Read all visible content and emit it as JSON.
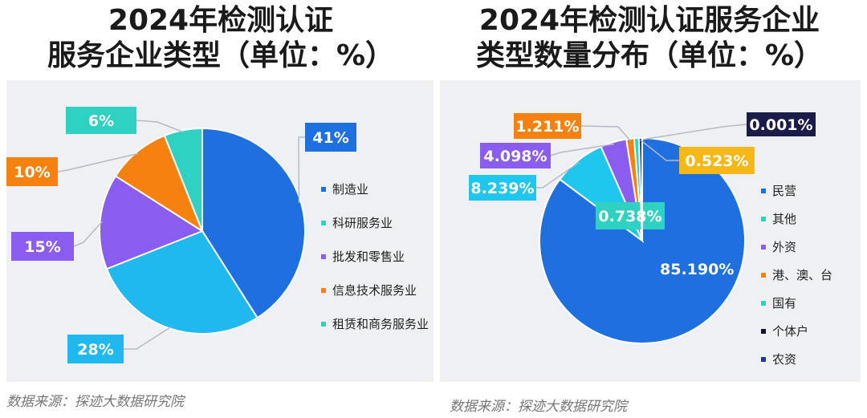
{
  "chart_data": [
    {
      "type": "pie",
      "title": "2024年检测认证服务企业类型（单位：%）",
      "title_lines": [
        "2024年检测认证",
        "服务企业类型（单位：%）"
      ],
      "source": "数据来源：探迹大数据研究院",
      "slices": [
        {
          "name": "制造业",
          "value": 41,
          "label": "41%",
          "color": "#1e6fe0",
          "label_bg": "#1e6fe0"
        },
        {
          "name": "租赁和商务服务业",
          "value": 28,
          "label": "28%",
          "color": "#1fb8ef",
          "label_bg": "#1fb8ef"
        },
        {
          "name": "批发和零售业",
          "value": 15,
          "label": "15%",
          "color": "#8a5cf0",
          "label_bg": "#8a5cf0"
        },
        {
          "name": "信息技术服务业",
          "value": 10,
          "label": "10%",
          "color": "#f5820f",
          "label_bg": "#f5820f"
        },
        {
          "name": "科研服务业",
          "value": 6,
          "label": "6%",
          "color": "#2ed1c2",
          "label_bg": "#2ed1c2"
        }
      ],
      "legend": [
        {
          "name": "制造业",
          "color": "#1e6fe0"
        },
        {
          "name": "科研服务业",
          "color": "#2ed1c2"
        },
        {
          "name": "批发和零售业",
          "color": "#8a5cf0"
        },
        {
          "name": "信息技术服务业",
          "color": "#f5820f"
        },
        {
          "name": "租赁和商务服务业",
          "color": "#2ed1c2"
        }
      ]
    },
    {
      "type": "pie",
      "title": "2024年检测认证服务企业类型数量分布（单位：%）",
      "title_lines": [
        "2024年检测认证服务企业",
        "类型数量分布（单位：%）"
      ],
      "source": "数据来源：探迹大数据研究院",
      "slices": [
        {
          "name": "民营",
          "value": 85.19,
          "label": "85.190%",
          "color": "#1e6fe0"
        },
        {
          "name": "其他",
          "value": 8.239,
          "label": "8.239%",
          "color": "#1fc6ee",
          "label_bg": "#1fc6ee"
        },
        {
          "name": "外资",
          "value": 4.098,
          "label": "4.098%",
          "color": "#8a5cf0",
          "label_bg": "#8a5cf0"
        },
        {
          "name": "港、澳、台",
          "value": 1.211,
          "label": "1.211%",
          "color": "#f5820f",
          "label_bg": "#f5820f"
        },
        {
          "name": "国有",
          "value": 0.738,
          "label": "0.738%",
          "color": "#2ed1c2",
          "label_bg": "#2ed1c2"
        },
        {
          "name": "个体户",
          "value": 0.001,
          "label": "0.001%",
          "color": "#111133",
          "label_bg": "#1c1c4a"
        },
        {
          "name": "农资",
          "value": 0.523,
          "label": "0.523%",
          "color": "#1a3a9a",
          "label_bg": "#f6b818"
        }
      ],
      "legend": [
        {
          "name": "民营",
          "color": "#1e6fe0"
        },
        {
          "name": "其他",
          "color": "#2ed1c2"
        },
        {
          "name": "外资",
          "color": "#8a5cf0"
        },
        {
          "name": "港、澳、台",
          "color": "#f5820f"
        },
        {
          "name": "国有",
          "color": "#2ed1c2"
        },
        {
          "name": "个体户",
          "color": "#111133"
        },
        {
          "name": "农资",
          "color": "#1a3a9a"
        }
      ]
    }
  ]
}
